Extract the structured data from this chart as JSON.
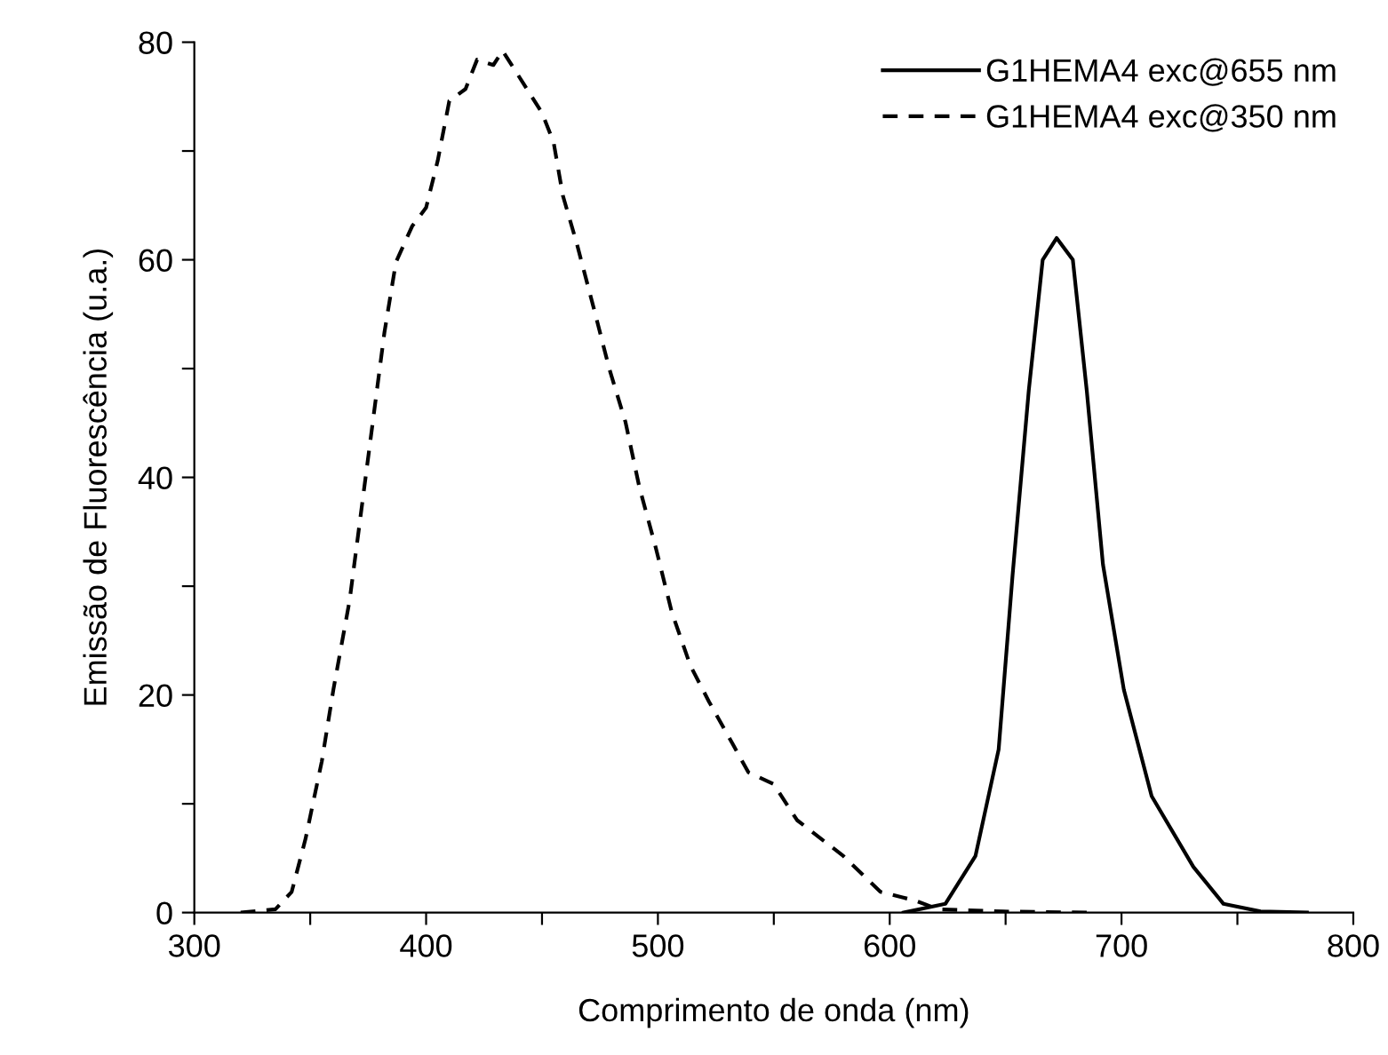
{
  "chart_data": {
    "type": "line",
    "xlabel": "Comprimento de onda (nm)",
    "ylabel": "Emissão de Fluorescência (u.a.)",
    "xlim": [
      300,
      800
    ],
    "ylim": [
      0,
      80
    ],
    "xticks": [
      300,
      {
        "value": 350,
        "label": null
      },
      400,
      {
        "value": 450,
        "label": null
      },
      500,
      {
        "value": 550,
        "label": null
      },
      600,
      {
        "value": 650,
        "label": null
      },
      700,
      {
        "value": 750,
        "label": null
      },
      800
    ],
    "yticks": [
      0,
      {
        "value": 10,
        "label": null
      },
      20,
      {
        "value": 30,
        "label": null
      },
      40,
      {
        "value": 50,
        "label": null
      },
      60,
      {
        "value": 70,
        "label": null
      },
      80
    ],
    "legend": "top right",
    "grid": false,
    "series": [
      {
        "name": "G1HEMA4 exc@655 nm",
        "color": "#000000",
        "line_style": "solid",
        "x": [
          606,
          624,
          637,
          647,
          653,
          660,
          666,
          672,
          679,
          685,
          692,
          701,
          713,
          731,
          744,
          760,
          780
        ],
        "values": [
          0,
          0.8,
          5.2,
          15,
          31,
          48,
          60,
          62,
          60,
          48,
          32,
          20.5,
          10.7,
          4.2,
          0.8,
          0.1,
          0
        ]
      },
      {
        "name": "G1HEMA4 exc@350 nm",
        "color": "#000000",
        "line_style": "dashed",
        "x": [
          320,
          335,
          342,
          348,
          355,
          360,
          367,
          372,
          377,
          382,
          387,
          394,
          400,
          405,
          410,
          417,
          422,
          429,
          433,
          442,
          450,
          455,
          459,
          465,
          473,
          479,
          486,
          492,
          499,
          506,
          514,
          522,
          532,
          539,
          550,
          560,
          580,
          596,
          611,
          621,
          649,
          685
        ],
        "values": [
          0,
          0.3,
          1.9,
          6.8,
          13.9,
          20.5,
          28.7,
          36.9,
          45.1,
          53.3,
          59.8,
          63.1,
          64.8,
          69.1,
          74.6,
          75.7,
          78.4,
          77.9,
          79.2,
          76.2,
          73.5,
          70.8,
          65.9,
          61.5,
          55,
          50,
          45.1,
          39.1,
          33.6,
          27.6,
          22.7,
          19.4,
          15.6,
          12.9,
          11.8,
          8.5,
          5.2,
          1.9,
          1.1,
          0.3,
          0.1,
          0
        ]
      }
    ]
  }
}
